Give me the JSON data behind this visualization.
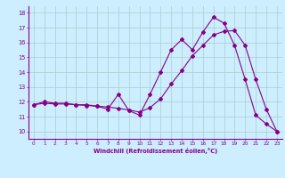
{
  "xlabel": "Windchill (Refroidissement éolien,°C)",
  "bg_color": "#cceeff",
  "line_color": "#880088",
  "grid_color": "#aacccc",
  "xlim": [
    -0.5,
    23.5
  ],
  "ylim": [
    9.5,
    18.5
  ],
  "yticks": [
    10,
    11,
    12,
    13,
    14,
    15,
    16,
    17,
    18
  ],
  "xticks": [
    0,
    1,
    2,
    3,
    4,
    5,
    6,
    7,
    8,
    9,
    10,
    11,
    12,
    13,
    14,
    15,
    16,
    17,
    18,
    19,
    20,
    21,
    22,
    23
  ],
  "line1_x": [
    0,
    1,
    2,
    3,
    4,
    5,
    6,
    7,
    8,
    9,
    10,
    11,
    12,
    13,
    14,
    15,
    16,
    17,
    18,
    19,
    20,
    21,
    22,
    23
  ],
  "line1_y": [
    11.8,
    12.0,
    11.9,
    11.9,
    11.8,
    11.8,
    11.7,
    11.5,
    12.5,
    11.4,
    11.1,
    12.5,
    14.0,
    15.5,
    16.2,
    15.5,
    16.7,
    17.7,
    17.3,
    15.8,
    13.5,
    11.1,
    10.5,
    10.0
  ],
  "line2_x": [
    0,
    1,
    2,
    3,
    4,
    5,
    6,
    7,
    8,
    9,
    10,
    11,
    12,
    13,
    14,
    15,
    16,
    17,
    18,
    19,
    20,
    21,
    22,
    23
  ],
  "line2_y": [
    11.8,
    11.9,
    11.85,
    11.85,
    11.8,
    11.75,
    11.7,
    11.65,
    11.55,
    11.45,
    11.3,
    11.6,
    12.2,
    13.2,
    14.1,
    15.1,
    15.8,
    16.5,
    16.75,
    16.8,
    15.8,
    13.5,
    11.5,
    10.0
  ]
}
